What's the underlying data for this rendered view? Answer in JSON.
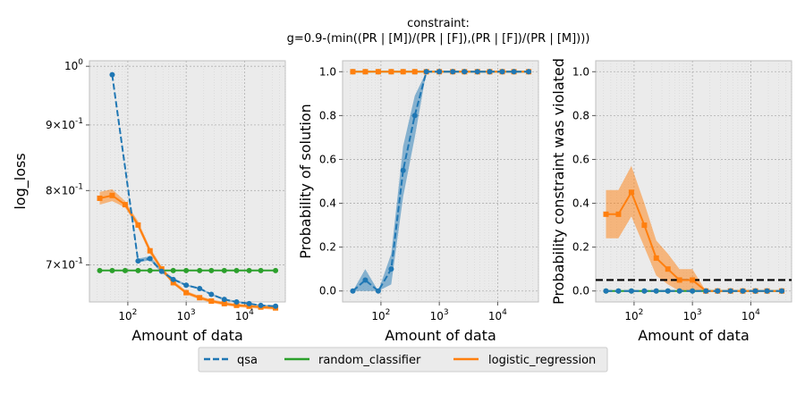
{
  "figure": {
    "title_line1": "constraint:",
    "title_line2": "g=0.9-(min((PR | [M])/(PR | [F]),(PR | [F])/(PR | [M])))"
  },
  "legend": {
    "items": [
      {
        "label": "qsa",
        "color": "#1f77b4",
        "dash": true
      },
      {
        "label": "random_classifier",
        "color": "#2ca02c",
        "dash": false
      },
      {
        "label": "logistic_regression",
        "color": "#ff7f0e",
        "dash": false
      }
    ]
  },
  "colors": {
    "qsa": "#1f77b4",
    "random_classifier": "#2ca02c",
    "logistic_regression": "#ff7f0e",
    "axes_bg": "#ebebeb",
    "threshold": "#000000"
  },
  "chart_data": [
    {
      "type": "line",
      "xlabel": "Amount of data",
      "ylabel": "log_loss",
      "xscale": "log",
      "yscale": "log",
      "xlim": [
        22,
        50000
      ],
      "ylim": [
        0.655,
        1.01
      ],
      "xticks": [
        {
          "value": 100,
          "label": "10^2"
        },
        {
          "value": 1000,
          "label": "10^3"
        },
        {
          "value": 10000,
          "label": "10^4"
        }
      ],
      "yticks": [
        {
          "value": 1.0,
          "label": "10^0"
        },
        {
          "value": 0.9,
          "label": "9×10^-1"
        },
        {
          "value": 0.8,
          "label": "8×10^-1"
        },
        {
          "value": 0.7,
          "label": "7×10^-1"
        }
      ],
      "grid": true,
      "series": [
        {
          "name": "qsa",
          "marker": "circle",
          "dash": true,
          "x": [
            54,
            150,
            240,
            380,
            600,
            1000,
            1700,
            2700,
            4500,
            7300,
            12000,
            19000,
            34000
          ],
          "y": [
            0.985,
            0.705,
            0.708,
            0.692,
            0.682,
            0.675,
            0.671,
            0.664,
            0.658,
            0.655,
            0.653,
            0.651,
            0.65
          ],
          "band_lo": [
            0.985,
            0.703,
            0.706,
            0.69,
            0.681,
            0.674,
            0.67,
            0.663,
            0.657,
            0.654,
            0.652,
            0.65,
            0.649
          ],
          "band_hi": [
            0.985,
            0.708,
            0.711,
            0.694,
            0.684,
            0.676,
            0.672,
            0.665,
            0.659,
            0.656,
            0.654,
            0.652,
            0.651
          ]
        },
        {
          "name": "random_classifier",
          "marker": "circle",
          "dash": false,
          "x": [
            33,
            54,
            90,
            150,
            240,
            380,
            600,
            1000,
            1700,
            2700,
            4500,
            7300,
            12000,
            19000,
            34000
          ],
          "y": [
            0.693,
            0.693,
            0.693,
            0.693,
            0.693,
            0.693,
            0.693,
            0.693,
            0.693,
            0.693,
            0.693,
            0.693,
            0.693,
            0.693,
            0.693
          ]
        },
        {
          "name": "logistic_regression",
          "marker": "square",
          "dash": false,
          "x": [
            33,
            54,
            90,
            150,
            240,
            380,
            600,
            1000,
            1700,
            2700,
            4500,
            7300,
            12000,
            19000,
            34000
          ],
          "y": [
            0.789,
            0.793,
            0.78,
            0.752,
            0.718,
            0.695,
            0.678,
            0.666,
            0.66,
            0.656,
            0.653,
            0.651,
            0.65,
            0.649,
            0.648
          ],
          "band_lo": [
            0.78,
            0.785,
            0.776,
            0.748,
            0.714,
            0.692,
            0.676,
            0.664,
            0.658,
            0.654,
            0.651,
            0.649,
            0.648,
            0.647,
            0.646
          ],
          "band_hi": [
            0.798,
            0.802,
            0.785,
            0.757,
            0.722,
            0.698,
            0.681,
            0.668,
            0.662,
            0.658,
            0.655,
            0.653,
            0.652,
            0.651,
            0.65
          ]
        }
      ]
    },
    {
      "type": "line",
      "xlabel": "Amount of data",
      "ylabel": "Probability of solution",
      "xscale": "log",
      "yscale": "linear",
      "xlim": [
        22,
        50000
      ],
      "ylim": [
        -0.05,
        1.05
      ],
      "xticks": [
        {
          "value": 100,
          "label": "10^2"
        },
        {
          "value": 1000,
          "label": "10^3"
        },
        {
          "value": 10000,
          "label": "10^4"
        }
      ],
      "yticks": [
        {
          "value": 0.0,
          "label": "0.0"
        },
        {
          "value": 0.2,
          "label": "0.2"
        },
        {
          "value": 0.4,
          "label": "0.4"
        },
        {
          "value": 0.6,
          "label": "0.6"
        },
        {
          "value": 0.8,
          "label": "0.8"
        },
        {
          "value": 1.0,
          "label": "1.0"
        }
      ],
      "grid": true,
      "series": [
        {
          "name": "qsa",
          "marker": "circle",
          "dash": true,
          "x": [
            33,
            54,
            90,
            150,
            240,
            380,
            600,
            1000,
            1700,
            2700,
            4500,
            7300,
            12000,
            19000,
            34000
          ],
          "y": [
            0.0,
            0.05,
            0.0,
            0.1,
            0.55,
            0.8,
            1.0,
            1.0,
            1.0,
            1.0,
            1.0,
            1.0,
            1.0,
            1.0,
            1.0
          ],
          "band_lo": [
            0.0,
            0.0,
            0.0,
            0.03,
            0.43,
            0.7,
            1.0,
            1.0,
            1.0,
            1.0,
            1.0,
            1.0,
            1.0,
            1.0,
            1.0
          ],
          "band_hi": [
            0.0,
            0.1,
            0.0,
            0.17,
            0.66,
            0.89,
            1.0,
            1.0,
            1.0,
            1.0,
            1.0,
            1.0,
            1.0,
            1.0,
            1.0
          ]
        },
        {
          "name": "random_classifier",
          "marker": "circle",
          "dash": false,
          "x": [
            33,
            54,
            90,
            150,
            240,
            380,
            600,
            1000,
            1700,
            2700,
            4500,
            7300,
            12000,
            19000,
            34000
          ],
          "y": [
            1.0,
            1.0,
            1.0,
            1.0,
            1.0,
            1.0,
            1.0,
            1.0,
            1.0,
            1.0,
            1.0,
            1.0,
            1.0,
            1.0,
            1.0
          ]
        },
        {
          "name": "logistic_regression",
          "marker": "square",
          "dash": false,
          "x": [
            33,
            54,
            90,
            150,
            240,
            380,
            600,
            1000,
            1700,
            2700,
            4500,
            7300,
            12000,
            19000,
            34000
          ],
          "y": [
            1.0,
            1.0,
            1.0,
            1.0,
            1.0,
            1.0,
            1.0,
            1.0,
            1.0,
            1.0,
            1.0,
            1.0,
            1.0,
            1.0,
            1.0
          ]
        }
      ]
    },
    {
      "type": "line",
      "xlabel": "Amount of data",
      "ylabel": "Probability constraint was violated",
      "xscale": "log",
      "yscale": "linear",
      "xlim": [
        22,
        50000
      ],
      "ylim": [
        -0.05,
        1.05
      ],
      "xticks": [
        {
          "value": 100,
          "label": "10^2"
        },
        {
          "value": 1000,
          "label": "10^3"
        },
        {
          "value": 10000,
          "label": "10^4"
        }
      ],
      "yticks": [
        {
          "value": 0.0,
          "label": "0.0"
        },
        {
          "value": 0.2,
          "label": "0.2"
        },
        {
          "value": 0.4,
          "label": "0.4"
        },
        {
          "value": 0.6,
          "label": "0.6"
        },
        {
          "value": 0.8,
          "label": "0.8"
        },
        {
          "value": 1.0,
          "label": "1.0"
        }
      ],
      "grid": true,
      "hline": 0.05,
      "series": [
        {
          "name": "qsa",
          "marker": "circle",
          "dash": true,
          "x": [
            33,
            54,
            90,
            150,
            240,
            380,
            600,
            1000,
            1700,
            2700,
            4500,
            7300,
            12000,
            19000,
            34000
          ],
          "y": [
            0,
            0,
            0,
            0,
            0,
            0,
            0,
            0,
            0,
            0,
            0,
            0,
            0,
            0,
            0
          ]
        },
        {
          "name": "random_classifier",
          "marker": "circle",
          "dash": false,
          "x": [
            33,
            54,
            90,
            150,
            240,
            380,
            600,
            1000,
            1700,
            2700,
            4500,
            7300,
            12000,
            19000,
            34000
          ],
          "y": [
            0,
            0,
            0,
            0,
            0,
            0,
            0,
            0,
            0,
            0,
            0,
            0,
            0,
            0,
            0
          ]
        },
        {
          "name": "logistic_regression",
          "marker": "square",
          "dash": false,
          "x": [
            33,
            54,
            90,
            150,
            240,
            380,
            600,
            1000,
            1700,
            2700,
            4500,
            7300,
            12000,
            19000,
            34000
          ],
          "y": [
            0.35,
            0.35,
            0.45,
            0.3,
            0.15,
            0.1,
            0.05,
            0.05,
            0.0,
            0.0,
            0.0,
            0.0,
            0.0,
            0.0,
            0.0
          ],
          "band_lo": [
            0.24,
            0.24,
            0.34,
            0.2,
            0.07,
            0.03,
            0.0,
            0.0,
            0.0,
            0.0,
            0.0,
            0.0,
            0.0,
            0.0,
            0.0
          ],
          "band_hi": [
            0.46,
            0.46,
            0.57,
            0.4,
            0.23,
            0.17,
            0.1,
            0.1,
            0.0,
            0.0,
            0.0,
            0.0,
            0.0,
            0.0,
            0.0
          ]
        }
      ]
    }
  ]
}
